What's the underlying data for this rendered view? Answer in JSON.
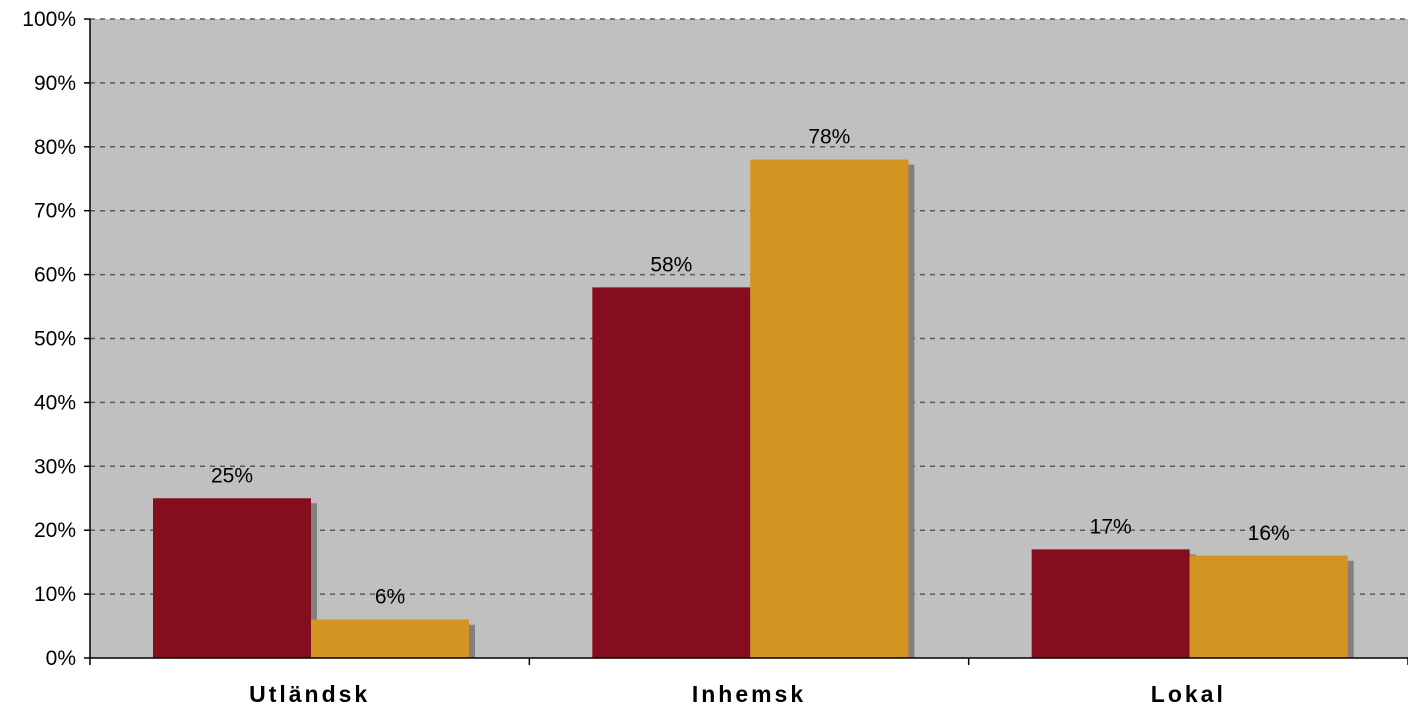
{
  "chart_data": {
    "type": "bar",
    "categories": [
      "Utländsk",
      "Inhemsk",
      "Lokal"
    ],
    "series": [
      {
        "values": [
          25,
          58,
          17
        ],
        "labels": [
          "25%",
          "58%",
          "17%"
        ],
        "color": "#840E1E"
      },
      {
        "values": [
          6,
          78,
          16
        ],
        "labels": [
          "6%",
          "78%",
          "16%"
        ],
        "color": "#D49421"
      }
    ],
    "ylim": [
      0,
      100
    ],
    "yticks": [
      "0%",
      "10%",
      "20%",
      "30%",
      "40%",
      "50%",
      "60%",
      "70%",
      "80%",
      "90%",
      "100%"
    ],
    "grid": true,
    "plot_background": "#C0C0C0",
    "shadow_color": "#808080",
    "grid_color": "#5A5A5A"
  }
}
